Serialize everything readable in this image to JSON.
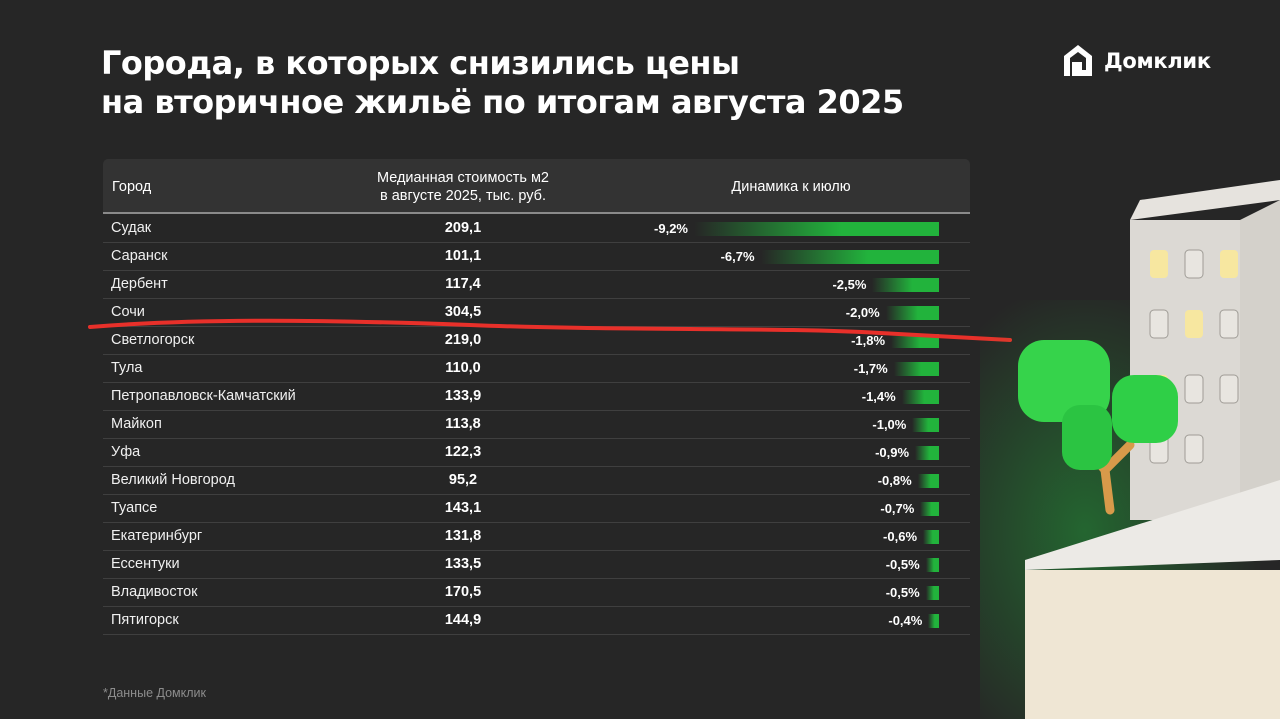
{
  "title": {
    "line1": "Города, в которых снизились цены",
    "line2": "на вторичное жильё по итогам августа 2025"
  },
  "brand": {
    "name": "Домклик"
  },
  "table": {
    "col_city": "Город",
    "col_price_line1": "Медианная стоимость м2",
    "col_price_line2": "в августе 2025, тыс. руб.",
    "col_change": "Динамика к июлю"
  },
  "chart_data": {
    "type": "table",
    "columns": [
      "Город",
      "Медианная стоимость м2 в августе 2025, тыс. руб.",
      "Динамика к июлю"
    ],
    "rows": [
      {
        "city": "Судак",
        "price": "209,1",
        "change_label": "-9,2%",
        "change": -9.2
      },
      {
        "city": "Саранск",
        "price": "101,1",
        "change_label": "-6,7%",
        "change": -6.7
      },
      {
        "city": "Дербент",
        "price": "117,4",
        "change_label": "-2,5%",
        "change": -2.5
      },
      {
        "city": "Сочи",
        "price": "304,5",
        "change_label": "-2,0%",
        "change": -2.0
      },
      {
        "city": "Светлогорск",
        "price": "219,0",
        "change_label": "-1,8%",
        "change": -1.8
      },
      {
        "city": "Тула",
        "price": "110,0",
        "change_label": "-1,7%",
        "change": -1.7
      },
      {
        "city": "Петропавловск-Камчатский",
        "price": "133,9",
        "change_label": "-1,4%",
        "change": -1.4
      },
      {
        "city": "Майкоп",
        "price": "113,8",
        "change_label": "-1,0%",
        "change": -1.0
      },
      {
        "city": "Уфа",
        "price": "122,3",
        "change_label": "-0,9%",
        "change": -0.9
      },
      {
        "city": "Великий Новгород",
        "price": "95,2",
        "change_label": "-0,8%",
        "change": -0.8
      },
      {
        "city": "Туапсе",
        "price": "143,1",
        "change_label": "-0,7%",
        "change": -0.7
      },
      {
        "city": "Екатеринбург",
        "price": "131,8",
        "change_label": "-0,6%",
        "change": -0.6
      },
      {
        "city": "Ессентуки",
        "price": "133,5",
        "change_label": "-0,5%",
        "change": -0.5
      },
      {
        "city": "Владивосток",
        "price": "170,5",
        "change_label": "-0,5%",
        "change": -0.5
      },
      {
        "city": "Пятигорск",
        "price": "144,9",
        "change_label": "-0,4%",
        "change": -0.4
      }
    ],
    "bar_color": "#22b33c"
  },
  "footnote": "*Данные Домклик",
  "colors": {
    "background": "#262626",
    "bar": "#22b33c",
    "annotation_line": "#e8302a"
  }
}
